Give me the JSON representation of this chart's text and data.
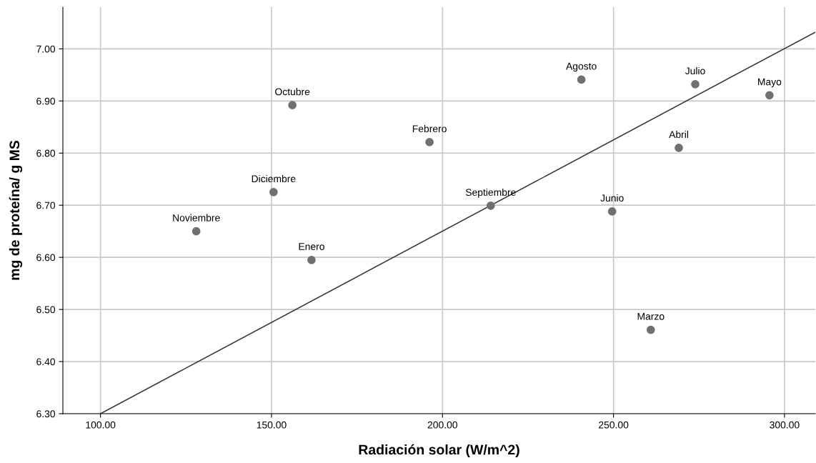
{
  "chart_data": {
    "type": "scatter",
    "xlabel": "Radiación solar (W/m^2)",
    "ylabel": "mg de proteína/ g MS",
    "xlim": [
      89,
      309
    ],
    "ylim": [
      6.3,
      7.08
    ],
    "xticks": [
      {
        "value": 100,
        "label": "100.00"
      },
      {
        "value": 150,
        "label": "150.00"
      },
      {
        "value": 200,
        "label": "200.00"
      },
      {
        "value": 250,
        "label": "250.00"
      },
      {
        "value": 300,
        "label": "300.00"
      }
    ],
    "yticks": [
      {
        "value": 6.3,
        "label": "6.30"
      },
      {
        "value": 6.4,
        "label": "6.40"
      },
      {
        "value": 6.5,
        "label": "6.50"
      },
      {
        "value": 6.6,
        "label": "6.60"
      },
      {
        "value": 6.7,
        "label": "6.70"
      },
      {
        "value": 6.8,
        "label": "6.80"
      },
      {
        "value": 6.9,
        "label": "6.90"
      },
      {
        "value": 7.0,
        "label": "7.00"
      }
    ],
    "grid": true,
    "series": [
      {
        "marker": "circle",
        "color": "#707070",
        "x": [
          128.0,
          150.6,
          156.1,
          161.7,
          196.2,
          214.1,
          240.6,
          249.6,
          260.9,
          269.1,
          273.9,
          295.6
        ],
        "values": [
          6.65,
          6.725,
          6.892,
          6.595,
          6.821,
          6.699,
          6.941,
          6.688,
          6.461,
          6.81,
          6.932,
          6.911
        ]
      },
      {
        "type": "line",
        "color": "#333333",
        "x": [
          100,
          309
        ],
        "values": [
          6.3,
          7.032
        ]
      }
    ],
    "annotations": [
      {
        "text": "Noviembre",
        "x": 128.0,
        "y": 6.65
      },
      {
        "text": "Diciembre",
        "x": 150.6,
        "y": 6.725
      },
      {
        "text": "Octubre",
        "x": 156.1,
        "y": 6.892
      },
      {
        "text": "Enero",
        "x": 161.7,
        "y": 6.595
      },
      {
        "text": "Febrero",
        "x": 196.2,
        "y": 6.821
      },
      {
        "text": "Septiembre",
        "x": 214.1,
        "y": 6.699
      },
      {
        "text": "Agosto",
        "x": 240.6,
        "y": 6.941
      },
      {
        "text": "Junio",
        "x": 249.6,
        "y": 6.688
      },
      {
        "text": "Marzo",
        "x": 260.9,
        "y": 6.461
      },
      {
        "text": "Abril",
        "x": 269.1,
        "y": 6.81
      },
      {
        "text": "Julio",
        "x": 273.9,
        "y": 6.932
      },
      {
        "text": "Mayo",
        "x": 295.6,
        "y": 6.911
      }
    ]
  }
}
